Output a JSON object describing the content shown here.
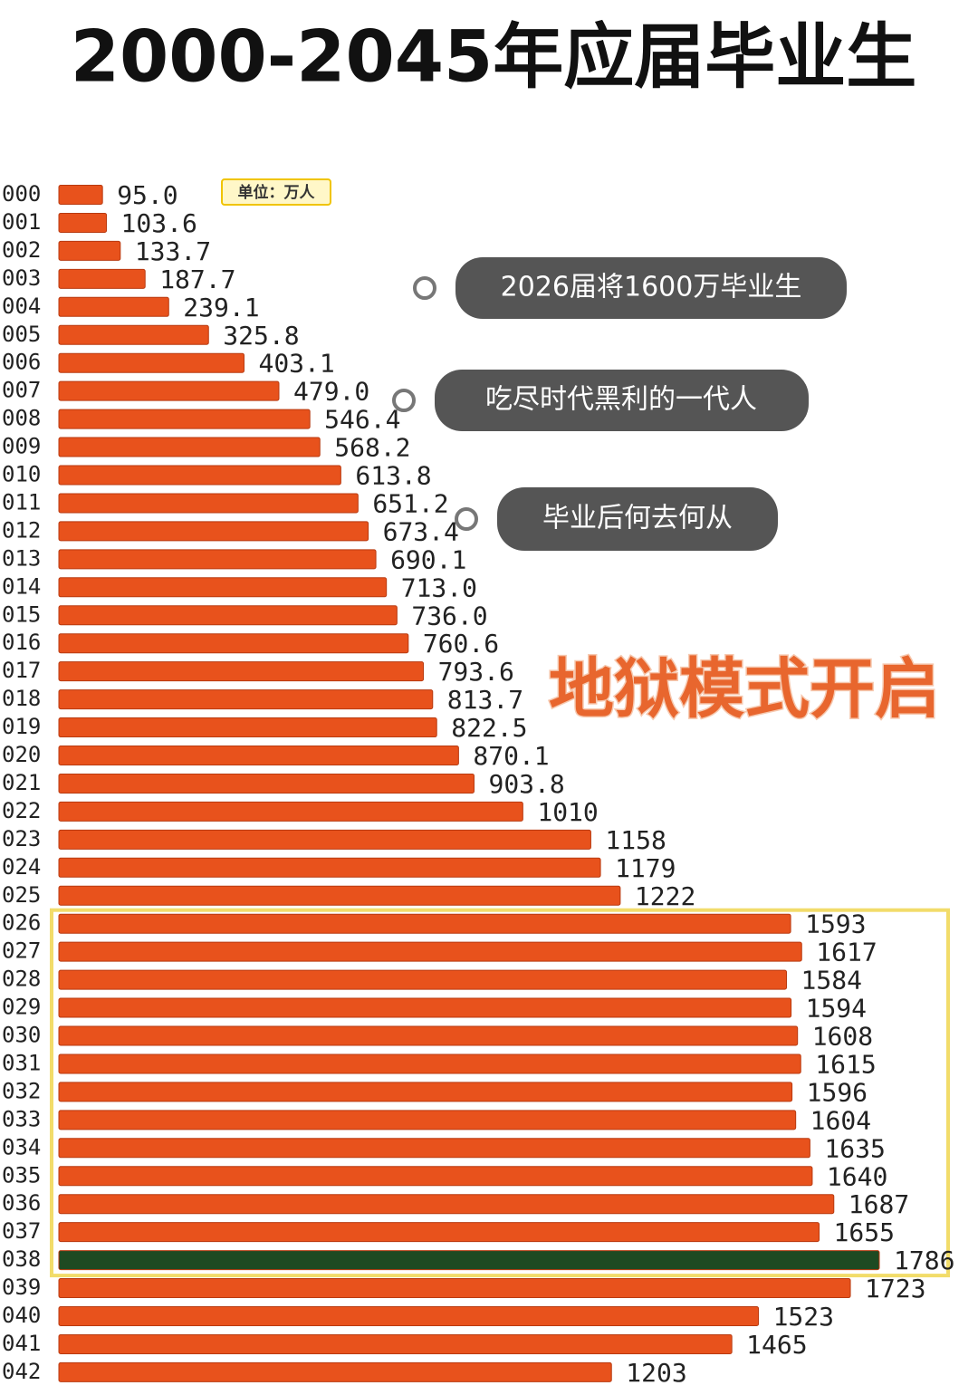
{
  "chart_data": {
    "type": "bar",
    "title": "2000-2045年应届毕业生",
    "unit": "单位：万人",
    "categories": [
      "000",
      "001",
      "002",
      "003",
      "004",
      "005",
      "006",
      "007",
      "008",
      "009",
      "010",
      "011",
      "012",
      "013",
      "014",
      "015",
      "016",
      "017",
      "018",
      "019",
      "020",
      "021",
      "022",
      "023",
      "024",
      "025",
      "026",
      "027",
      "028",
      "029",
      "030",
      "031",
      "032",
      "033",
      "034",
      "035",
      "036",
      "037",
      "038",
      "039",
      "040",
      "041",
      "042"
    ],
    "values": [
      95.0,
      103.6,
      133.7,
      187.7,
      239.1,
      325.8,
      403.1,
      479.0,
      546.4,
      568.2,
      613.8,
      651.2,
      673.4,
      690.1,
      713.0,
      736.0,
      760.6,
      793.6,
      813.7,
      822.5,
      870.1,
      903.8,
      1010,
      1158,
      1179,
      1222,
      1593,
      1617,
      1584,
      1594,
      1608,
      1615,
      1596,
      1604,
      1635,
      1640,
      1687,
      1655,
      1786,
      1723,
      1523,
      1465,
      1203
    ],
    "value_labels": [
      "95.0",
      "103.6",
      "133.7",
      "187.7",
      "239.1",
      "325.8",
      "403.1",
      "479.0",
      "546.4",
      "568.2",
      "613.8",
      "651.2",
      "673.4",
      "690.1",
      "713.0",
      "736.0",
      "760.6",
      "793.6",
      "813.7",
      "822.5",
      "870.1",
      "903.8",
      "1010",
      "1158",
      "1179",
      "1222",
      "1593",
      "1617",
      "1584",
      "1594",
      "1608",
      "1615",
      "1596",
      "1604",
      "1635",
      "1640",
      "1687",
      "1655",
      "1786",
      "1723",
      "1523",
      "1465",
      "1203"
    ],
    "colors": [
      "#e8521c",
      "#e8521c",
      "#e8521c",
      "#e8521c",
      "#e8521c",
      "#e8521c",
      "#e8521c",
      "#e8521c",
      "#e8521c",
      "#e8521c",
      "#e8521c",
      "#e8521c",
      "#e8521c",
      "#e8521c",
      "#e8521c",
      "#e8521c",
      "#e8521c",
      "#e8521c",
      "#e8521c",
      "#e8521c",
      "#e8521c",
      "#e8521c",
      "#e8521c",
      "#e8521c",
      "#e8521c",
      "#e8521c",
      "#e8521c",
      "#e8521c",
      "#e8521c",
      "#e8521c",
      "#e8521c",
      "#e8521c",
      "#e8521c",
      "#e8521c",
      "#e8521c",
      "#e8521c",
      "#e8521c",
      "#e8521c",
      "#1e4a22",
      "#e8521c",
      "#e8521c",
      "#e8521c",
      "#e8521c"
    ],
    "annotations": [
      "2026届将1600万毕业生",
      "吃尽时代黑利的一代人",
      "毕业后何去何从",
      "地狱模式开启"
    ]
  }
}
